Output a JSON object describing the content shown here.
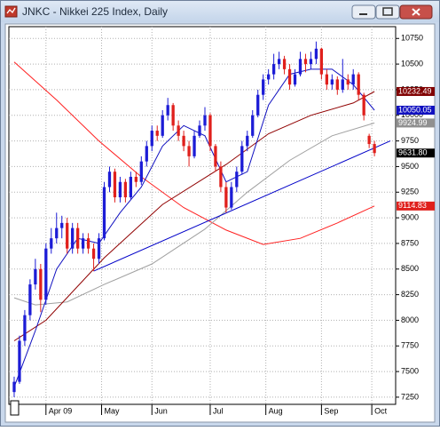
{
  "window_title": "JNKC - Nikkei 225 Index, Daily",
  "chart_data": {
    "type": "candlestick",
    "up_color": "#1c1cd6",
    "down_color": "#e0201c",
    "grid": true,
    "xlim": [
      -1,
      72
    ],
    "xticks": [
      {
        "value": 6,
        "label": "Apr 09"
      },
      {
        "value": 16.5,
        "label": "May"
      },
      {
        "value": 26,
        "label": "Jun"
      },
      {
        "value": 37,
        "label": "Jul"
      },
      {
        "value": 47.5,
        "label": "Aug"
      },
      {
        "value": 58,
        "label": "Sep"
      },
      {
        "value": 67.5,
        "label": "Oct"
      }
    ],
    "ylim": [
      7180,
      10865
    ],
    "yticks": [
      7250,
      7500,
      7750,
      8000,
      8250,
      8500,
      8750,
      9000,
      9250,
      9500,
      9750,
      10000,
      10250,
      10500,
      10750
    ],
    "x": [
      0,
      1,
      2,
      3,
      4,
      5,
      6,
      7,
      8,
      9,
      10,
      11,
      12,
      13,
      14,
      15,
      16,
      17,
      18,
      19,
      20,
      21,
      22,
      23,
      24,
      25,
      26,
      27,
      28,
      29,
      30,
      31,
      32,
      33,
      34,
      35,
      36,
      37,
      38,
      39,
      40,
      41,
      42,
      43,
      44,
      45,
      46,
      47,
      48,
      49,
      50,
      51,
      52,
      53,
      54,
      55,
      56,
      57,
      58,
      59,
      60,
      61,
      62,
      63,
      64,
      65,
      66,
      67,
      68
    ],
    "ohlc": [
      [
        7300,
        7450,
        7250,
        7400
      ],
      [
        7400,
        7850,
        7380,
        7800
      ],
      [
        7800,
        8100,
        7750,
        8050
      ],
      [
        8050,
        8400,
        8000,
        8350
      ],
      [
        8350,
        8600,
        8300,
        8500
      ],
      [
        8500,
        8550,
        8080,
        8200
      ],
      [
        8200,
        8750,
        8150,
        8700
      ],
      [
        8700,
        8900,
        8650,
        8800
      ],
      [
        8800,
        9050,
        8750,
        8900
      ],
      [
        8900,
        9020,
        8800,
        8950
      ],
      [
        8950,
        9000,
        8650,
        8700
      ],
      [
        8700,
        8950,
        8650,
        8900
      ],
      [
        8900,
        8950,
        8650,
        8700
      ],
      [
        8700,
        8850,
        8650,
        8800
      ],
      [
        8800,
        8850,
        8650,
        8700
      ],
      [
        8700,
        8750,
        8480,
        8600
      ],
      [
        8600,
        8850,
        8550,
        8800
      ],
      [
        8800,
        9350,
        8780,
        9300
      ],
      [
        9300,
        9500,
        9250,
        9450
      ],
      [
        9450,
        9480,
        9150,
        9200
      ],
      [
        9200,
        9400,
        9150,
        9350
      ],
      [
        9350,
        9380,
        9150,
        9200
      ],
      [
        9200,
        9450,
        9180,
        9400
      ],
      [
        9400,
        9450,
        9300,
        9350
      ],
      [
        9350,
        9600,
        9320,
        9550
      ],
      [
        9550,
        9750,
        9500,
        9700
      ],
      [
        9700,
        9900,
        9650,
        9850
      ],
      [
        9850,
        9900,
        9750,
        9800
      ],
      [
        9800,
        10050,
        9780,
        10000
      ],
      [
        10000,
        10170,
        9950,
        10100
      ],
      [
        10100,
        10120,
        9850,
        9900
      ],
      [
        9900,
        9950,
        9750,
        9800
      ],
      [
        9800,
        9850,
        9650,
        9700
      ],
      [
        9700,
        9750,
        9500,
        9600
      ],
      [
        9600,
        9850,
        9580,
        9800
      ],
      [
        9800,
        9950,
        9780,
        9900
      ],
      [
        9900,
        10080,
        9850,
        10000
      ],
      [
        10000,
        10020,
        9650,
        9700
      ],
      [
        9700,
        9720,
        9450,
        9500
      ],
      [
        9500,
        9550,
        9250,
        9300
      ],
      [
        9300,
        9350,
        9050,
        9100
      ],
      [
        9100,
        9350,
        9080,
        9300
      ],
      [
        9300,
        9500,
        9250,
        9450
      ],
      [
        9450,
        9750,
        9420,
        9700
      ],
      [
        9700,
        9850,
        9650,
        9800
      ],
      [
        9800,
        10050,
        9780,
        10000
      ],
      [
        10000,
        10250,
        9980,
        10200
      ],
      [
        10200,
        10400,
        10150,
        10350
      ],
      [
        10350,
        10450,
        10300,
        10400
      ],
      [
        10400,
        10600,
        10350,
        10500
      ],
      [
        10500,
        10620,
        10450,
        10550
      ],
      [
        10550,
        10580,
        10400,
        10450
      ],
      [
        10450,
        10500,
        10250,
        10300
      ],
      [
        10300,
        10450,
        10280,
        10400
      ],
      [
        10400,
        10620,
        10380,
        10550
      ],
      [
        10550,
        10600,
        10420,
        10500
      ],
      [
        10500,
        10620,
        10450,
        10550
      ],
      [
        10550,
        10720,
        10500,
        10650
      ],
      [
        10650,
        10660,
        10350,
        10400
      ],
      [
        10400,
        10450,
        10250,
        10300
      ],
      [
        10300,
        10400,
        10250,
        10350
      ],
      [
        10350,
        10380,
        10200,
        10250
      ],
      [
        10250,
        10550,
        10220,
        10350
      ],
      [
        10350,
        10400,
        10250,
        10300
      ],
      [
        10300,
        10450,
        10250,
        10400
      ],
      [
        10400,
        10420,
        10150,
        10200
      ],
      [
        10200,
        10220,
        9950,
        10000
      ],
      [
        9800,
        9820,
        9680,
        9720
      ],
      [
        9720,
        9750,
        9600,
        9631.8
      ]
    ],
    "lines": [
      {
        "color": "#ff2020",
        "x": [
          0,
          8,
          16,
          24,
          32,
          40,
          47,
          54,
          61,
          68
        ],
        "values": [
          10520,
          10150,
          9750,
          9400,
          9100,
          8880,
          8740,
          8800,
          8950,
          9115
        ]
      },
      {
        "color": "#a0a0a0",
        "x": [
          0,
          4,
          10,
          17,
          26,
          36,
          44,
          52,
          60,
          68
        ],
        "values": [
          8220,
          8150,
          8180,
          8350,
          8550,
          8890,
          9250,
          9560,
          9800,
          9925
        ]
      },
      {
        "color": "#900000",
        "x": [
          0,
          6,
          17,
          28,
          40,
          48,
          56,
          64,
          68
        ],
        "values": [
          7800,
          8000,
          8610,
          9130,
          9520,
          9820,
          10000,
          10120,
          10232
        ]
      },
      {
        "color": "#1010c0",
        "x": [
          0,
          4,
          8,
          12,
          16,
          20,
          24,
          28,
          32,
          36,
          40,
          44,
          48,
          52,
          56,
          60,
          64,
          68
        ],
        "values": [
          7350,
          7900,
          8500,
          8800,
          8750,
          9050,
          9300,
          9700,
          9900,
          9800,
          9350,
          9450,
          10100,
          10400,
          10450,
          10450,
          10300,
          10050
        ]
      },
      {
        "color": "#0000c8",
        "x": [
          15,
          71
        ],
        "values": [
          8480,
          9750
        ]
      }
    ],
    "price_labels": [
      {
        "value": 10232.49,
        "label": "10232.49",
        "color": "#800000"
      },
      {
        "value": 10050.05,
        "label": "10050.05",
        "color": "#1010c0"
      },
      {
        "value": 9924.99,
        "label": "9924.99",
        "color": "#909090"
      },
      {
        "value": 9631.8,
        "label": "9631.80",
        "color": "#000000"
      },
      {
        "value": 9114.83,
        "label": "9114.83",
        "color": "#e0201c"
      }
    ]
  }
}
